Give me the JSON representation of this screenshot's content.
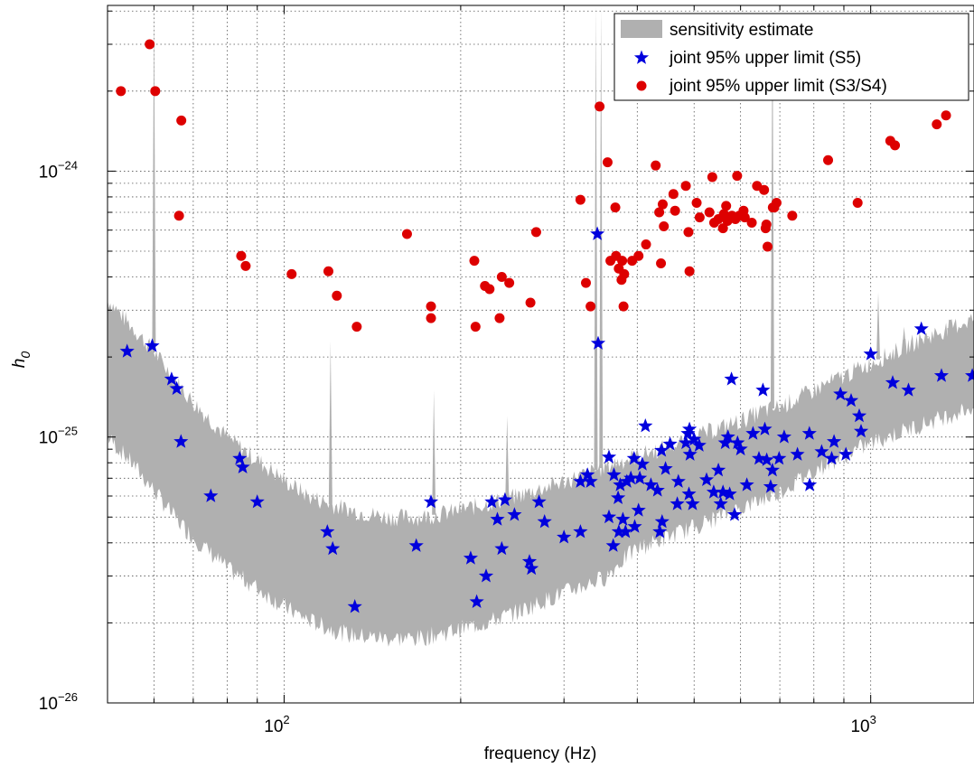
{
  "chart_data": {
    "type": "scatter",
    "x_scale": "log",
    "y_scale": "log",
    "xlim": [
      50,
      1500
    ],
    "ylim": [
      1e-26,
      4.2e-24
    ],
    "grid": true,
    "xlabel": "frequency (Hz)",
    "ylabel_base": "h",
    "ylabel_sub": "0",
    "x_ticks": [
      {
        "value": 100,
        "base": "10",
        "exp": "2"
      },
      {
        "value": 1000,
        "base": "10",
        "exp": "3"
      }
    ],
    "y_ticks": [
      {
        "value": 1e-26,
        "base": "10",
        "exp": "−26"
      },
      {
        "value": 1e-25,
        "base": "10",
        "exp": "−25"
      },
      {
        "value": 1e-24,
        "base": "10",
        "exp": "−24"
      }
    ],
    "legend": {
      "position": "top-right",
      "entries": [
        {
          "label": "sensitivity estimate",
          "marker": "band",
          "color": "#b0b0b0"
        },
        {
          "label": "joint 95% upper limit (S5)",
          "marker": "star",
          "color": "#0000dd"
        },
        {
          "label": "joint 95% upper limit (S3/S4)",
          "marker": "circle",
          "color": "#dd0000"
        }
      ]
    },
    "sensitivity_band": {
      "color": "#b0b0b0",
      "lower": [
        [
          50,
          1e-25
        ],
        [
          55,
          8e-26
        ],
        [
          60,
          6.3e-26
        ],
        [
          65,
          5e-26
        ],
        [
          70,
          4.2e-26
        ],
        [
          80,
          3.2e-26
        ],
        [
          90,
          2.7e-26
        ],
        [
          100,
          2.3e-26
        ],
        [
          110,
          2.05e-26
        ],
        [
          120,
          1.9e-26
        ],
        [
          130,
          1.8e-26
        ],
        [
          150,
          1.75e-26
        ],
        [
          170,
          1.75e-26
        ],
        [
          190,
          1.85e-26
        ],
        [
          220,
          2e-26
        ],
        [
          250,
          2.2e-26
        ],
        [
          300,
          2.6e-26
        ],
        [
          330,
          2.8e-26
        ],
        [
          355,
          3e-26
        ],
        [
          380,
          3.5e-26
        ],
        [
          400,
          3.8e-26
        ],
        [
          450,
          4.2e-26
        ],
        [
          500,
          4.6e-26
        ],
        [
          550,
          5e-26
        ],
        [
          600,
          5.4e-26
        ],
        [
          650,
          5.8e-26
        ],
        [
          700,
          6.2e-26
        ],
        [
          800,
          7.5e-26
        ],
        [
          900,
          8.5e-26
        ],
        [
          1000,
          9.5e-26
        ],
        [
          1200,
          1.1e-25
        ],
        [
          1500,
          1.3e-25
        ]
      ],
      "upper": [
        [
          50,
          3.3e-25
        ],
        [
          55,
          2.6e-25
        ],
        [
          60,
          2.1e-25
        ],
        [
          65,
          1.65e-25
        ],
        [
          70,
          1.35e-25
        ],
        [
          80,
          1e-25
        ],
        [
          90,
          8.2e-26
        ],
        [
          100,
          6.9e-26
        ],
        [
          110,
          6e-26
        ],
        [
          120,
          5.6e-26
        ],
        [
          130,
          5.3e-26
        ],
        [
          150,
          5e-26
        ],
        [
          170,
          5e-26
        ],
        [
          190,
          5.2e-26
        ],
        [
          220,
          5.6e-26
        ],
        [
          250,
          6e-26
        ],
        [
          280,
          6.5e-26
        ],
        [
          300,
          6.8e-26
        ],
        [
          330,
          7.3e-26
        ],
        [
          355,
          7.8e-26
        ],
        [
          380,
          8.2e-26
        ],
        [
          400,
          8.5e-26
        ],
        [
          450,
          9.2e-26
        ],
        [
          500,
          1e-25
        ],
        [
          550,
          1.08e-25
        ],
        [
          600,
          1.15e-25
        ],
        [
          650,
          1.25e-25
        ],
        [
          700,
          1.3e-25
        ],
        [
          800,
          1.5e-25
        ],
        [
          900,
          1.7e-25
        ],
        [
          1000,
          1.9e-25
        ],
        [
          1200,
          2.3e-25
        ],
        [
          1500,
          2.8e-25
        ]
      ],
      "spikes": [
        [
          60,
          4.2e-24
        ],
        [
          120,
          2.3e-25
        ],
        [
          180,
          1.5e-25
        ],
        [
          240,
          1.2e-25
        ],
        [
          340,
          4.2e-24
        ],
        [
          347,
          4.2e-24
        ],
        [
          680,
          4.2e-24
        ],
        [
          1030,
          3.5e-25
        ],
        [
          1360,
          2e-25
        ],
        [
          1140,
          2.6e-25
        ],
        [
          1250,
          2.4e-25
        ]
      ]
    },
    "series": [
      {
        "name": "joint 95% upper limit (S5)",
        "marker": "star",
        "color": "#0000dd",
        "points": [
          [
            54,
            2.1e-25
          ],
          [
            59.6,
            2.2e-25
          ],
          [
            64.3,
            1.65e-25
          ],
          [
            65.6,
            1.52e-25
          ],
          [
            66.7,
            9.6e-26
          ],
          [
            75,
            6e-26
          ],
          [
            84,
            8.3e-26
          ],
          [
            85,
            7.7e-26
          ],
          [
            90,
            5.7e-26
          ],
          [
            118.5,
            4.4e-26
          ],
          [
            121,
            3.8e-26
          ],
          [
            132,
            2.3e-26
          ],
          [
            168,
            3.9e-26
          ],
          [
            178,
            5.7e-26
          ],
          [
            208,
            3.5e-26
          ],
          [
            213,
            2.4e-26
          ],
          [
            221,
            3e-26
          ],
          [
            226,
            5.7e-26
          ],
          [
            231,
            4.9e-26
          ],
          [
            235,
            3.8e-26
          ],
          [
            238,
            5.8e-26
          ],
          [
            247,
            5.1e-26
          ],
          [
            262,
            3.4e-26
          ],
          [
            264,
            3.2e-26
          ],
          [
            272,
            5.7e-26
          ],
          [
            278,
            4.8e-26
          ],
          [
            300,
            4.2e-26
          ],
          [
            320,
            4.4e-26
          ],
          [
            320,
            6.8e-26
          ],
          [
            329,
            7.2e-26
          ],
          [
            333,
            6.8e-26
          ],
          [
            342,
            5.8e-25
          ],
          [
            343,
            2.25e-25
          ],
          [
            358,
            8.4e-26
          ],
          [
            358,
            5e-26
          ],
          [
            364,
            3.9e-26
          ],
          [
            365,
            7.2e-26
          ],
          [
            371,
            5.9e-26
          ],
          [
            372,
            4.4e-26
          ],
          [
            374,
            6.6e-26
          ],
          [
            378,
            4.9e-26
          ],
          [
            382,
            4.4e-26
          ],
          [
            384,
            6.8e-26
          ],
          [
            390,
            7e-26
          ],
          [
            395,
            8.3e-26
          ],
          [
            396,
            4.6e-26
          ],
          [
            402,
            5.3e-26
          ],
          [
            404,
            7e-26
          ],
          [
            408,
            7.9e-26
          ],
          [
            413,
            1.1e-25
          ],
          [
            422,
            6.6e-26
          ],
          [
            433,
            6.3e-26
          ],
          [
            437,
            4.4e-26
          ],
          [
            440,
            8.9e-26
          ],
          [
            441,
            4.8e-26
          ],
          [
            447,
            7.6e-26
          ],
          [
            455,
            9.4e-26
          ],
          [
            468,
            5.6e-26
          ],
          [
            470,
            6.8e-26
          ],
          [
            484,
            9.5e-26
          ],
          [
            488,
            1.03e-25
          ],
          [
            490,
            6.1e-26
          ],
          [
            491,
            1.07e-25
          ],
          [
            492,
            8.6e-26
          ],
          [
            497,
            5.6e-26
          ],
          [
            500,
            9.8e-26
          ],
          [
            510,
            9.3e-26
          ],
          [
            525,
            6.9e-26
          ],
          [
            540,
            6.2e-26
          ],
          [
            550,
            7.5e-26
          ],
          [
            555,
            5.6e-26
          ],
          [
            560,
            6.2e-26
          ],
          [
            565,
            9.5e-26
          ],
          [
            571,
            1e-25
          ],
          [
            575,
            6.1e-26
          ],
          [
            579,
            1.65e-25
          ],
          [
            586,
            5.1e-26
          ],
          [
            593,
            9.5e-26
          ],
          [
            600,
            9e-26
          ],
          [
            615,
            6.6e-26
          ],
          [
            630,
            1.03e-25
          ],
          [
            645,
            8.3e-26
          ],
          [
            655,
            1.5e-25
          ],
          [
            660,
            1.07e-25
          ],
          [
            665,
            8.2e-26
          ],
          [
            675,
            6.5e-26
          ],
          [
            680,
            7.5e-26
          ],
          [
            698,
            8.3e-26
          ],
          [
            712,
            1e-25
          ],
          [
            750,
            8.6e-26
          ],
          [
            786,
            1.03e-25
          ],
          [
            787,
            6.6e-26
          ],
          [
            825,
            8.8e-26
          ],
          [
            858,
            8.3e-26
          ],
          [
            866,
            9.6e-26
          ],
          [
            888,
            1.45e-25
          ],
          [
            907,
            8.6e-26
          ],
          [
            926,
            1.37e-25
          ],
          [
            956,
            1.2e-25
          ],
          [
            963,
            1.05e-25
          ],
          [
            1000,
            2.05e-25
          ],
          [
            1090,
            1.6e-25
          ],
          [
            1160,
            1.5e-25
          ],
          [
            1220,
            2.55e-25
          ],
          [
            1320,
            1.7e-25
          ],
          [
            1490,
            1.7e-25
          ]
        ]
      },
      {
        "name": "joint 95% upper limit (S3/S4)",
        "marker": "circle",
        "color": "#dd0000",
        "points": [
          [
            52.7,
            2e-24
          ],
          [
            59,
            3e-24
          ],
          [
            60.3,
            2e-24
          ],
          [
            66.2,
            6.8e-25
          ],
          [
            66.8,
            1.55e-24
          ],
          [
            84.5,
            4.8e-25
          ],
          [
            86,
            4.4e-25
          ],
          [
            103,
            4.1e-25
          ],
          [
            119,
            4.2e-25
          ],
          [
            123,
            3.4e-25
          ],
          [
            133,
            2.6e-25
          ],
          [
            162,
            5.8e-25
          ],
          [
            178,
            2.8e-25
          ],
          [
            178,
            3.1e-25
          ],
          [
            211,
            4.6e-25
          ],
          [
            212,
            2.6e-25
          ],
          [
            220,
            3.7e-25
          ],
          [
            224,
            3.6e-25
          ],
          [
            233,
            2.8e-25
          ],
          [
            235,
            4e-25
          ],
          [
            242,
            3.8e-25
          ],
          [
            263,
            3.2e-25
          ],
          [
            269,
            5.9e-25
          ],
          [
            320,
            7.8e-25
          ],
          [
            327,
            3.8e-25
          ],
          [
            333,
            3.1e-25
          ],
          [
            345,
            1.75e-24
          ],
          [
            356,
            1.08e-24
          ],
          [
            360,
            4.6e-25
          ],
          [
            367,
            7.3e-25
          ],
          [
            368,
            4.8e-25
          ],
          [
            372,
            4.3e-25
          ],
          [
            376,
            3.9e-25
          ],
          [
            377,
            4.6e-25
          ],
          [
            379,
            3.1e-25
          ],
          [
            380,
            4.1e-25
          ],
          [
            392,
            4.6e-25
          ],
          [
            402,
            4.8e-25
          ],
          [
            414,
            5.3e-25
          ],
          [
            430,
            1.05e-24
          ],
          [
            436,
            7e-25
          ],
          [
            439,
            4.5e-25
          ],
          [
            442,
            7.5e-25
          ],
          [
            444,
            6.2e-25
          ],
          [
            461,
            8.2e-25
          ],
          [
            464,
            7.1e-25
          ],
          [
            484,
            8.8e-25
          ],
          [
            489,
            5.9e-25
          ],
          [
            491,
            4.2e-25
          ],
          [
            505,
            7.6e-25
          ],
          [
            511,
            6.7e-25
          ],
          [
            531,
            7e-25
          ],
          [
            537,
            9.5e-25
          ],
          [
            541,
            6.4e-25
          ],
          [
            550,
            6.6e-25
          ],
          [
            560,
            6.1e-25
          ],
          [
            562,
            6.9e-25
          ],
          [
            567,
            7.4e-25
          ],
          [
            570,
            6.5e-25
          ],
          [
            580,
            6.8e-25
          ],
          [
            588,
            6.6e-25
          ],
          [
            592,
            9.6e-25
          ],
          [
            597,
            6.8e-25
          ],
          [
            607,
            7.1e-25
          ],
          [
            610,
            6.7e-25
          ],
          [
            627,
            6.4e-25
          ],
          [
            640,
            8.8e-25
          ],
          [
            658,
            8.5e-25
          ],
          [
            662,
            6.1e-25
          ],
          [
            664,
            6.3e-25
          ],
          [
            667,
            5.2e-25
          ],
          [
            681,
            7.3e-25
          ],
          [
            685,
            7.3e-25
          ],
          [
            691,
            7.6e-25
          ],
          [
            735,
            6.8e-25
          ],
          [
            846,
            1.1e-24
          ],
          [
            950,
            7.6e-25
          ],
          [
            1080,
            1.3e-24
          ],
          [
            1100,
            1.25e-24
          ],
          [
            1296,
            1.5e-24
          ],
          [
            1344,
            1.62e-24
          ]
        ]
      }
    ]
  }
}
